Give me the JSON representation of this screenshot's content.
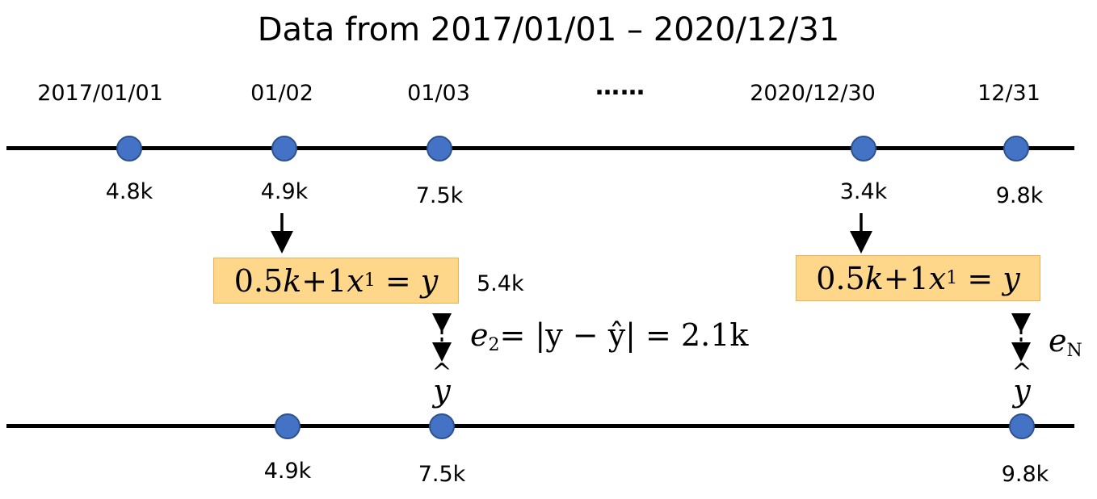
{
  "title": "Data from 2017/01/01 – 2020/12/31",
  "top_timeline": {
    "dates": [
      "2017/01/01",
      "01/02",
      "01/03",
      "2020/12/30",
      "12/31"
    ],
    "ellipsis": "……",
    "values": [
      "4.8k",
      "4.9k",
      "7.5k",
      "3.4k",
      "9.8k"
    ]
  },
  "formula": {
    "coef": "0.5",
    "k": "k",
    "plus": "+1",
    "x": "x",
    "x_sub": "1",
    "eq": " = ",
    "y": "y"
  },
  "prediction_value": "5.4k",
  "error_2": {
    "e": "e",
    "sub": "2",
    "expr": "= |y − ŷ| = 2.1k"
  },
  "error_n": {
    "e": "e",
    "sub": "N"
  },
  "yhat_label": "y",
  "yhat_hat": "^",
  "bottom_timeline": {
    "values": [
      "4.9k",
      "7.5k",
      "9.8k"
    ]
  },
  "colors": {
    "dot_fill": "#4472c4",
    "box_fill": "#ffd78a"
  }
}
